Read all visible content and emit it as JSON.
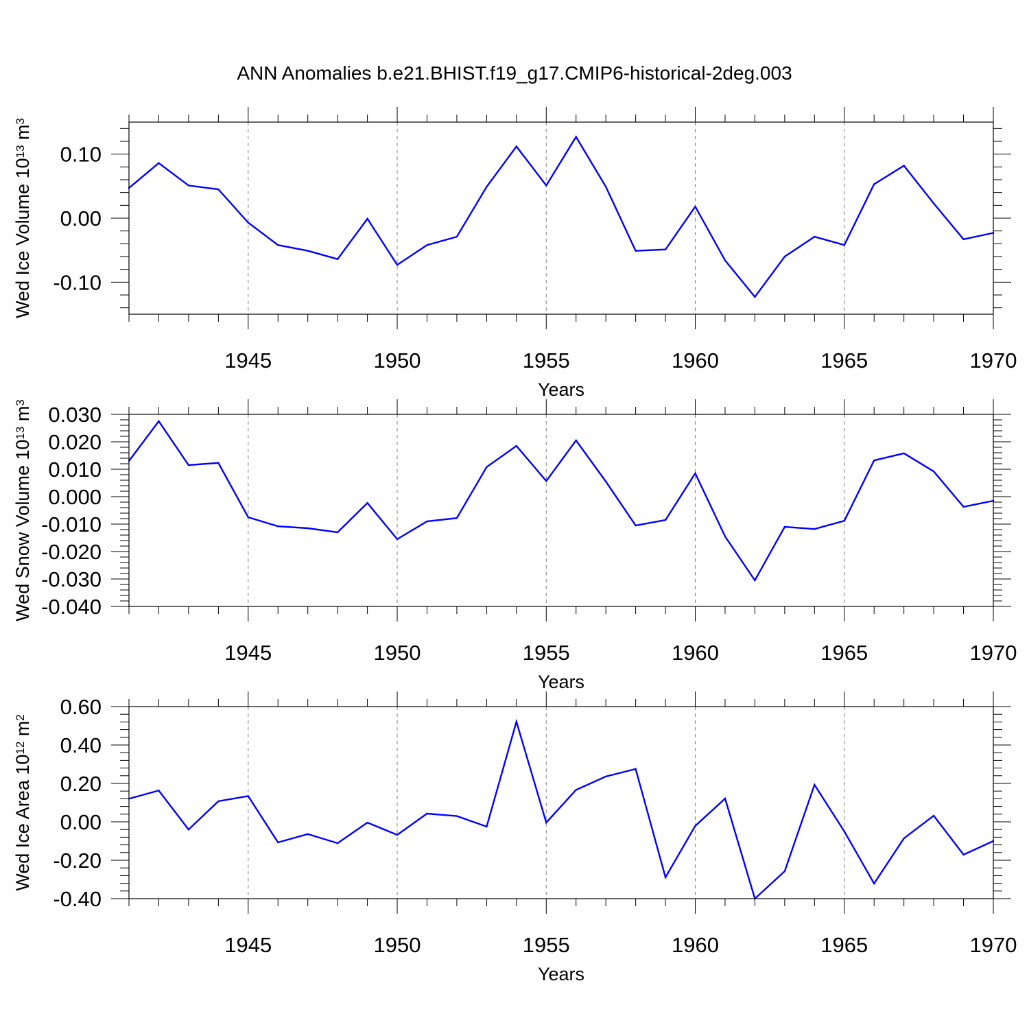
{
  "title": "ANN Anomalies b.e21.BHIST.f19_g17.CMIP6-historical-2deg.003",
  "colors": {
    "line": "#0000ff",
    "axis": "#000000",
    "grid": "#808080",
    "background": "#ffffff"
  },
  "chart_data": [
    {
      "type": "line",
      "ylabel": "Wed Ice Volume 10",
      "ylabel_exp": "13",
      "ylabel_unit": "m",
      "ylabel_unit_exp": "3",
      "xlabel": "Years",
      "xlim": [
        1941,
        1970
      ],
      "ylim": [
        -0.15,
        0.15
      ],
      "yticks": [
        -0.1,
        0.0,
        0.1
      ],
      "ytick_labels": [
        "-0.10",
        "0.00",
        "0.10"
      ],
      "xticks": [
        1945,
        1950,
        1955,
        1960,
        1965,
        1970
      ],
      "xtick_labels": [
        "1945",
        "1950",
        "1955",
        "1960",
        "1965",
        "1970"
      ],
      "grid": "vertical-dashed",
      "series": [
        {
          "name": "Wed Ice Volume",
          "x": [
            1941,
            1942,
            1943,
            1944,
            1945,
            1946,
            1947,
            1948,
            1949,
            1950,
            1951,
            1952,
            1953,
            1954,
            1955,
            1956,
            1957,
            1958,
            1959,
            1960,
            1961,
            1962,
            1963,
            1964,
            1965,
            1966,
            1967,
            1968,
            1969,
            1970
          ],
          "values": [
            0.047,
            0.086,
            0.051,
            0.045,
            -0.007,
            -0.042,
            -0.051,
            -0.064,
            -0.001,
            -0.073,
            -0.042,
            -0.029,
            0.049,
            0.112,
            0.051,
            0.127,
            0.049,
            -0.051,
            -0.049,
            0.018,
            -0.066,
            -0.123,
            -0.06,
            -0.029,
            -0.042,
            0.053,
            0.082,
            0.023,
            -0.033,
            -0.023
          ]
        }
      ]
    },
    {
      "type": "line",
      "ylabel": "Wed Snow Volume 10",
      "ylabel_exp": "13",
      "ylabel_unit": "m",
      "ylabel_unit_exp": "3",
      "xlabel": "Years",
      "xlim": [
        1941,
        1970
      ],
      "ylim": [
        -0.04,
        0.03
      ],
      "yticks": [
        -0.04,
        -0.03,
        -0.02,
        -0.01,
        0.0,
        0.01,
        0.02,
        0.03
      ],
      "ytick_labels": [
        "-0.040",
        "-0.030",
        "-0.020",
        "-0.010",
        "0.000",
        "0.010",
        "0.020",
        "0.030"
      ],
      "xticks": [
        1945,
        1950,
        1955,
        1960,
        1965,
        1970
      ],
      "xtick_labels": [
        "1945",
        "1950",
        "1955",
        "1960",
        "1965",
        "1970"
      ],
      "grid": "vertical-dashed",
      "series": [
        {
          "name": "Wed Snow Volume",
          "x": [
            1941,
            1942,
            1943,
            1944,
            1945,
            1946,
            1947,
            1948,
            1949,
            1950,
            1951,
            1952,
            1953,
            1954,
            1955,
            1956,
            1957,
            1958,
            1959,
            1960,
            1961,
            1962,
            1963,
            1964,
            1965,
            1966,
            1967,
            1968,
            1969,
            1970
          ],
          "values": [
            0.013,
            0.0275,
            0.0115,
            0.0123,
            -0.0075,
            -0.0108,
            -0.0115,
            -0.013,
            -0.0023,
            -0.0155,
            -0.009,
            -0.0078,
            0.0108,
            0.0185,
            0.0057,
            0.0205,
            0.0055,
            -0.0105,
            -0.0085,
            0.0085,
            -0.0145,
            -0.0305,
            -0.011,
            -0.0118,
            -0.0088,
            0.0132,
            0.0158,
            0.0092,
            -0.0037,
            -0.0015
          ]
        }
      ]
    },
    {
      "type": "line",
      "ylabel": "Wed Ice Area 10",
      "ylabel_exp": "12",
      "ylabel_unit": "m",
      "ylabel_unit_exp": "2",
      "xlabel": "Years",
      "xlim": [
        1941,
        1970
      ],
      "ylim": [
        -0.4,
        0.6
      ],
      "yticks": [
        -0.4,
        -0.2,
        0.0,
        0.2,
        0.4,
        0.6
      ],
      "ytick_labels": [
        "-0.40",
        "-0.20",
        "0.00",
        "0.20",
        "0.40",
        "0.60"
      ],
      "xticks": [
        1945,
        1950,
        1955,
        1960,
        1965,
        1970
      ],
      "xtick_labels": [
        "1945",
        "1950",
        "1955",
        "1960",
        "1965",
        "1970"
      ],
      "grid": "vertical-dashed",
      "series": [
        {
          "name": "Wed Ice Area",
          "x": [
            1941,
            1942,
            1943,
            1944,
            1945,
            1946,
            1947,
            1948,
            1949,
            1950,
            1951,
            1952,
            1953,
            1954,
            1955,
            1956,
            1957,
            1958,
            1959,
            1960,
            1961,
            1962,
            1963,
            1964,
            1965,
            1966,
            1967,
            1968,
            1969,
            1970
          ],
          "values": [
            0.12,
            0.163,
            -0.04,
            0.107,
            0.134,
            -0.107,
            -0.064,
            -0.111,
            -0.004,
            -0.068,
            0.043,
            0.03,
            -0.025,
            0.521,
            -0.004,
            0.166,
            0.236,
            0.275,
            -0.289,
            -0.021,
            0.121,
            -0.4,
            -0.257,
            0.193,
            -0.05,
            -0.321,
            -0.086,
            0.032,
            -0.171,
            -0.1
          ]
        }
      ]
    }
  ]
}
